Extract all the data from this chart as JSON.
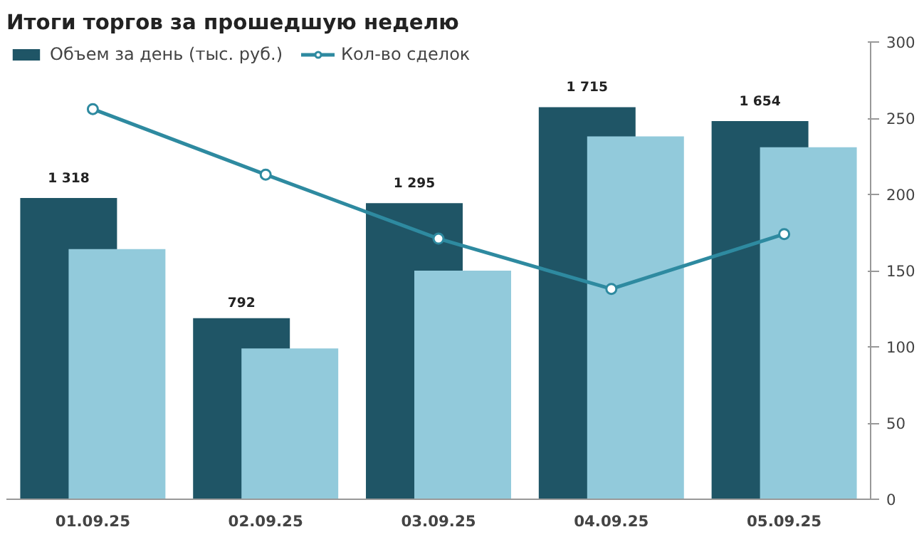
{
  "chart_data": {
    "type": "bar",
    "title": "Итоги торгов за прошедшую неделю",
    "categories": [
      "01.09.25",
      "02.09.25",
      "03.09.25",
      "04.09.25",
      "05.09.25"
    ],
    "ylim": [
      0,
      300
    ],
    "yticks": [
      0,
      50,
      100,
      150,
      200,
      250,
      300
    ],
    "y2lim": [
      0,
      2000
    ],
    "grid": false,
    "legend": "top",
    "series": [
      {
        "name": "Объем за день (тыс. руб.)",
        "axis": "y2",
        "color": "#1f5566",
        "values": [
          1318,
          792,
          1295,
          1715,
          1654
        ],
        "value_labels": [
          "1 318",
          "792",
          "1 295",
          "1 715",
          "1 654"
        ]
      },
      {
        "axis": "y2",
        "color": "#92cadb",
        "values": [
          1094,
          660,
          1000,
          1587,
          1540
        ]
      },
      {
        "type": "line",
        "name": "Кол-во сделок",
        "color": "#2e8aa0",
        "marker": "circle",
        "values": [
          256,
          213,
          171,
          138,
          174
        ]
      }
    ]
  }
}
